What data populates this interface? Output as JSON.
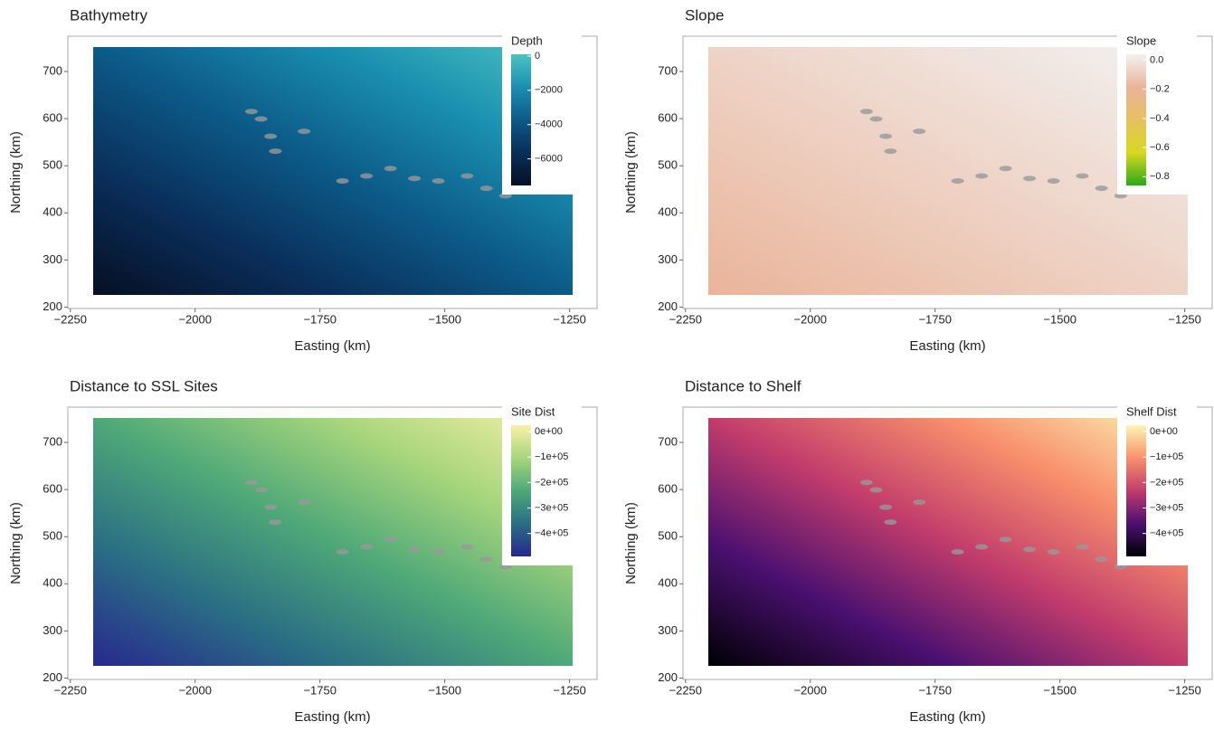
{
  "chart_data": [
    {
      "type": "raster",
      "title": "Bathymetry",
      "xlabel": "Easting (km)",
      "ylabel": "Northing (km)",
      "xlim": [
        -2255,
        -1195
      ],
      "ylim": [
        197,
        775
      ],
      "xticks": [
        {
          "value": -2250,
          "label": "−2250"
        },
        {
          "value": -2000,
          "label": "−2000"
        },
        {
          "value": -1750,
          "label": "−1750"
        },
        {
          "value": -1500,
          "label": "−1500"
        },
        {
          "value": -1250,
          "label": "−1250"
        }
      ],
      "yticks": [
        200,
        300,
        400,
        500,
        600,
        700
      ],
      "legend": {
        "title": "Depth",
        "lim": [
          100,
          -7550
        ],
        "ticks": [
          0,
          {
            "value": -2000,
            "label": "−2000"
          },
          {
            "value": -4000,
            "label": "−4000"
          },
          {
            "value": -6000,
            "label": "−6000"
          }
        ],
        "colors": [
          "#4cc4c0",
          "#1a8fb0",
          "#0c5a88",
          "#0a2e5a",
          "#060f24"
        ]
      }
    },
    {
      "type": "raster",
      "title": "Slope",
      "xlabel": "Easting (km)",
      "ylabel": "Northing (km)",
      "xlim": [
        -2255,
        -1195
      ],
      "ylim": [
        197,
        775
      ],
      "xticks": [
        {
          "value": -2250,
          "label": "−2250"
        },
        {
          "value": -2000,
          "label": "−2000"
        },
        {
          "value": -1750,
          "label": "−1750"
        },
        {
          "value": -1500,
          "label": "−1500"
        },
        {
          "value": -1250,
          "label": "−1250"
        }
      ],
      "yticks": [
        200,
        300,
        400,
        500,
        600,
        700
      ],
      "legend": {
        "title": "Slope",
        "lim": [
          0.04,
          -0.86
        ],
        "ticks": [
          {
            "value": 0,
            "label": "0.0"
          },
          {
            "value": -0.2,
            "label": "−0.2"
          },
          {
            "value": -0.4,
            "label": "−0.4"
          },
          {
            "value": -0.6,
            "label": "−0.6"
          },
          {
            "value": -0.8,
            "label": "−0.8"
          }
        ],
        "colors": [
          "#f2f2f2",
          "#eab49a",
          "#e6c060",
          "#d8d820",
          "#2aaa18"
        ]
      }
    },
    {
      "type": "raster",
      "title": "Distance to SSL Sites",
      "xlabel": "Easting (km)",
      "ylabel": "Northing (km)",
      "xlim": [
        -2255,
        -1195
      ],
      "ylim": [
        197,
        775
      ],
      "xticks": [
        {
          "value": -2250,
          "label": "−2250"
        },
        {
          "value": -2000,
          "label": "−2000"
        },
        {
          "value": -1750,
          "label": "−1750"
        },
        {
          "value": -1500,
          "label": "−1500"
        },
        {
          "value": -1250,
          "label": "−1250"
        }
      ],
      "yticks": [
        200,
        300,
        400,
        500,
        600,
        700
      ],
      "legend": {
        "title": "Site Dist",
        "lim": [
          25000,
          -490000
        ],
        "ticks": [
          {
            "value": 0,
            "label": "0e+00"
          },
          {
            "value": -100000,
            "label": "−1e+05"
          },
          {
            "value": -200000,
            "label": "−2e+05"
          },
          {
            "value": -300000,
            "label": "−3e+05"
          },
          {
            "value": -400000,
            "label": "−4e+05"
          }
        ],
        "colors": [
          "#f8f0a8",
          "#a8d67c",
          "#4ea878",
          "#2a6e84",
          "#28288e"
        ]
      }
    },
    {
      "type": "raster",
      "title": "Distance to Shelf",
      "xlabel": "Easting (km)",
      "ylabel": "Northing (km)",
      "xlim": [
        -2255,
        -1195
      ],
      "ylim": [
        197,
        775
      ],
      "xticks": [
        {
          "value": -2250,
          "label": "−2250"
        },
        {
          "value": -2000,
          "label": "−2000"
        },
        {
          "value": -1750,
          "label": "−1750"
        },
        {
          "value": -1500,
          "label": "−1500"
        },
        {
          "value": -1250,
          "label": "−1250"
        }
      ],
      "yticks": [
        200,
        300,
        400,
        500,
        600,
        700
      ],
      "legend": {
        "title": "Shelf Dist",
        "lim": [
          25000,
          -490000
        ],
        "ticks": [
          {
            "value": 0,
            "label": "0e+00"
          },
          {
            "value": -100000,
            "label": "−1e+05"
          },
          {
            "value": -200000,
            "label": "−2e+05"
          },
          {
            "value": -300000,
            "label": "−3e+05"
          },
          {
            "value": -400000,
            "label": "−4e+05"
          }
        ],
        "colors": [
          "#fcf4b6",
          "#f8906c",
          "#c23c6c",
          "#4a1070",
          "#000004"
        ]
      }
    }
  ]
}
